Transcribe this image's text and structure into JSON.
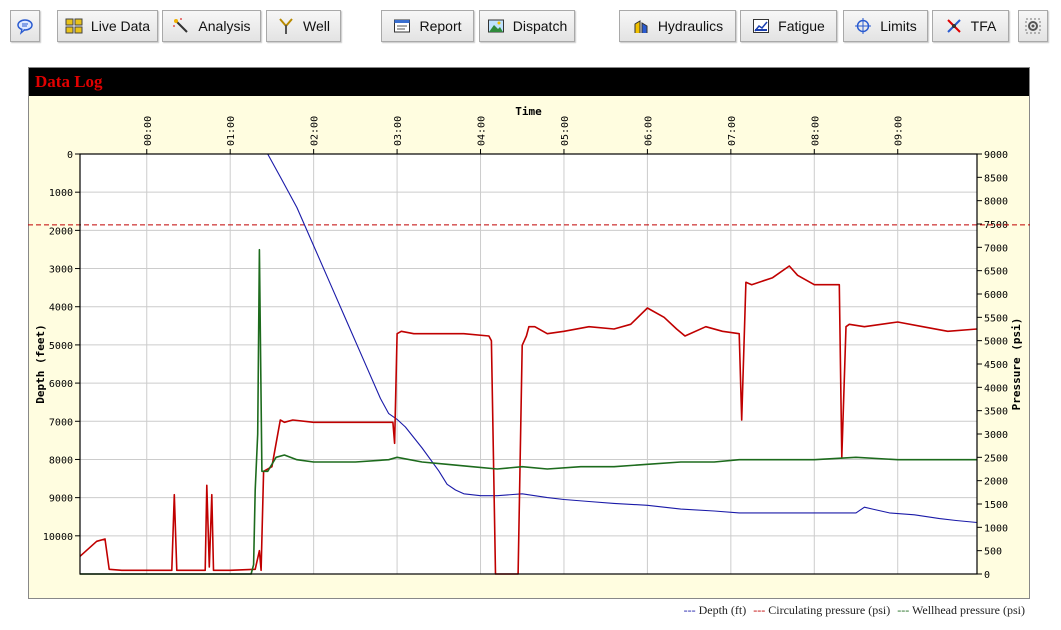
{
  "toolbar": {
    "buttons": [
      {
        "id": "chat",
        "label": "",
        "icon": "speech-bubble-icon"
      },
      {
        "id": "live_data",
        "label": "Live Data",
        "icon": "grid-icon"
      },
      {
        "id": "analysis",
        "label": "Analysis",
        "icon": "magic-wand-icon"
      },
      {
        "id": "well",
        "label": "Well",
        "icon": "well-icon"
      },
      {
        "id": "report",
        "label": "Report",
        "icon": "report-icon"
      },
      {
        "id": "dispatch",
        "label": "Dispatch",
        "icon": "dispatch-icon"
      },
      {
        "id": "hydraulics",
        "label": "Hydraulics",
        "icon": "hydraulics-icon"
      },
      {
        "id": "fatigue",
        "label": "Fatigue",
        "icon": "fatigue-chart-icon"
      },
      {
        "id": "limits",
        "label": "Limits",
        "icon": "crosshair-icon"
      },
      {
        "id": "tfa",
        "label": "TFA",
        "icon": "tfa-icon"
      },
      {
        "id": "settings",
        "label": "",
        "icon": "gear-icon"
      }
    ]
  },
  "panel": {
    "title": "Data Log"
  },
  "legend": {
    "depth": "Depth (ft)",
    "circ": "Circulating pressure (psi)",
    "well": "Wellhead pressure (psi)",
    "dash": "---"
  },
  "colors": {
    "depth": "#1a1aa8",
    "circ": "#c00000",
    "well": "#1d6b1d",
    "plot_bg": "#ffffff",
    "panel_bg": "#fffde0",
    "grid": "#cccccc"
  },
  "chart_data": {
    "type": "line",
    "title": "",
    "xlabel": "Time",
    "ylabel_left": "Depth (feet)",
    "ylabel_right": "Pressure (psi)",
    "x_unit": "hours",
    "xlim": [
      -0.8,
      9.95
    ],
    "x_ticks": [
      {
        "x": 0,
        "label": "00:00"
      },
      {
        "x": 1,
        "label": "01:00"
      },
      {
        "x": 2,
        "label": "02:00"
      },
      {
        "x": 3,
        "label": "03:00"
      },
      {
        "x": 4,
        "label": "04:00"
      },
      {
        "x": 5,
        "label": "05:00"
      },
      {
        "x": 6,
        "label": "06:00"
      },
      {
        "x": 7,
        "label": "07:00"
      },
      {
        "x": 8,
        "label": "08:00"
      },
      {
        "x": 9,
        "label": "09:00"
      }
    ],
    "ylim_left": [
      0,
      11000
    ],
    "yleft_inverted": true,
    "yleft_ticks": [
      0,
      1000,
      2000,
      3000,
      4000,
      5000,
      6000,
      7000,
      8000,
      9000,
      10000
    ],
    "ylim_right": [
      0,
      9000
    ],
    "yright_ticks": [
      0,
      500,
      1000,
      1500,
      2000,
      2500,
      3000,
      3500,
      4000,
      4500,
      5000,
      5500,
      6000,
      6500,
      7000,
      7500,
      8000,
      8500,
      9000
    ],
    "grid": true,
    "legend_position": "bottom-right",
    "reference_line": {
      "axis": "right",
      "value": 7480
    },
    "series": [
      {
        "name": "Depth (ft)",
        "axis": "left",
        "x": [
          -0.8,
          1.45,
          1.6,
          1.8,
          2.0,
          2.2,
          2.4,
          2.6,
          2.8,
          2.9,
          3.0,
          3.1,
          3.3,
          3.5,
          3.6,
          3.7,
          3.8,
          4.0,
          4.2,
          4.5,
          4.8,
          5.0,
          5.3,
          5.6,
          6.0,
          6.4,
          6.8,
          7.1,
          7.5,
          8.0,
          8.5,
          8.6,
          8.7,
          8.9,
          9.2,
          9.5,
          9.7,
          9.95
        ],
        "y": [
          0,
          0,
          600,
          1400,
          2400,
          3400,
          4400,
          5400,
          6400,
          6800,
          6950,
          7150,
          7700,
          8300,
          8650,
          8800,
          8900,
          8950,
          8950,
          8900,
          9000,
          9050,
          9100,
          9150,
          9200,
          9300,
          9350,
          9400,
          9400,
          9400,
          9400,
          9250,
          9300,
          9400,
          9450,
          9550,
          9600,
          9650
        ]
      },
      {
        "name": "Circulating pressure (psi)",
        "axis": "right",
        "x": [
          -0.8,
          -0.6,
          -0.5,
          -0.45,
          -0.3,
          0.0,
          0.3,
          0.33,
          0.36,
          0.4,
          0.7,
          0.72,
          0.75,
          0.78,
          0.8,
          1.0,
          1.3,
          1.35,
          1.37,
          1.4,
          1.5,
          1.55,
          1.6,
          1.65,
          1.75,
          2.0,
          2.5,
          2.9,
          2.95,
          2.97,
          3.0,
          3.05,
          3.2,
          3.5,
          3.8,
          4.1,
          4.13,
          4.18,
          4.2,
          4.3,
          4.4,
          4.45,
          4.5,
          4.55,
          4.58,
          4.65,
          4.8,
          5.0,
          5.3,
          5.6,
          5.8,
          6.0,
          6.2,
          6.35,
          6.45,
          6.7,
          6.9,
          7.1,
          7.13,
          7.18,
          7.25,
          7.5,
          7.7,
          7.8,
          8.0,
          8.3,
          8.33,
          8.38,
          8.42,
          8.6,
          9.0,
          9.3,
          9.6,
          9.95
        ],
        "y": [
          380,
          700,
          750,
          100,
          80,
          80,
          80,
          1700,
          80,
          80,
          80,
          1900,
          150,
          1700,
          80,
          80,
          100,
          500,
          80,
          2200,
          2300,
          2800,
          3300,
          3250,
          3300,
          3250,
          3250,
          3250,
          3250,
          2800,
          5150,
          5200,
          5150,
          5150,
          5150,
          5100,
          5000,
          0,
          0,
          0,
          0,
          0,
          4900,
          5100,
          5300,
          5300,
          5150,
          5200,
          5300,
          5250,
          5350,
          5700,
          5500,
          5250,
          5100,
          5300,
          5200,
          5150,
          3300,
          6250,
          6200,
          6350,
          6600,
          6400,
          6200,
          6200,
          2500,
          5300,
          5350,
          5300,
          5400,
          5300,
          5200,
          5250
        ]
      },
      {
        "name": "Wellhead pressure (psi)",
        "axis": "right",
        "x": [
          -0.8,
          1.25,
          1.28,
          1.3,
          1.33,
          1.35,
          1.38,
          1.42,
          1.45,
          1.55,
          1.65,
          1.8,
          2.0,
          2.5,
          2.9,
          3.0,
          3.3,
          3.6,
          3.9,
          4.2,
          4.5,
          4.8,
          5.2,
          5.6,
          6.0,
          6.4,
          6.8,
          7.1,
          7.5,
          8.0,
          8.5,
          9.0,
          9.5,
          9.95
        ],
        "y": [
          0,
          0,
          200,
          1800,
          3000,
          6950,
          2200,
          2200,
          2200,
          2500,
          2550,
          2450,
          2400,
          2400,
          2450,
          2500,
          2400,
          2350,
          2300,
          2250,
          2300,
          2250,
          2300,
          2300,
          2350,
          2400,
          2400,
          2450,
          2450,
          2450,
          2500,
          2450,
          2450,
          2450
        ]
      }
    ]
  }
}
